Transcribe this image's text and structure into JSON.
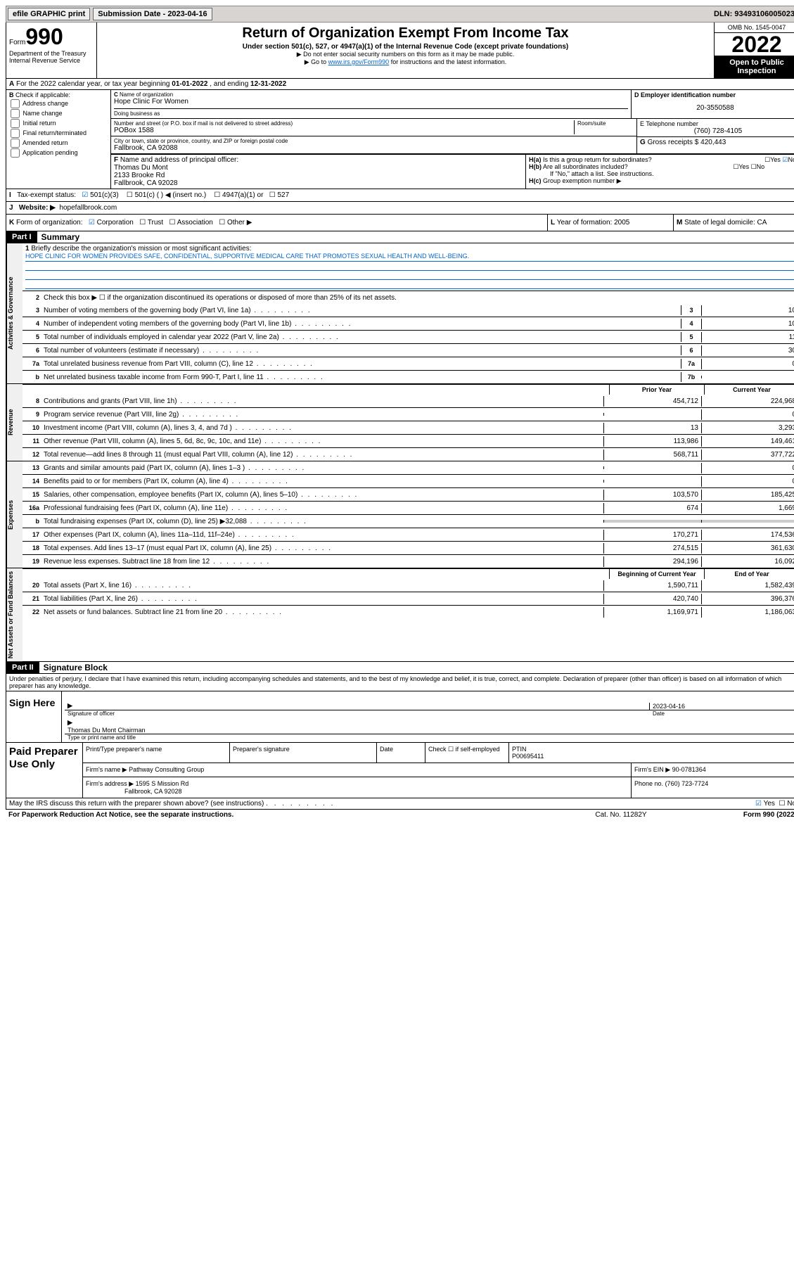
{
  "top_bar": {
    "efile": "efile GRAPHIC print",
    "submission": "Submission Date - 2023-04-16",
    "dln": "DLN: 93493106005023"
  },
  "header": {
    "form_prefix": "Form",
    "form_number": "990",
    "title": "Return of Organization Exempt From Income Tax",
    "subtitle": "Under section 501(c), 527, or 4947(a)(1) of the Internal Revenue Code (except private foundations)",
    "note1": "▶ Do not enter social security numbers on this form as it may be made public.",
    "note2_prefix": "▶ Go to ",
    "note2_link": "www.irs.gov/Form990",
    "note2_suffix": " for instructions and the latest information.",
    "dept": "Department of the Treasury\nInternal Revenue Service",
    "omb": "OMB No. 1545-0047",
    "year": "2022",
    "open": "Open to Public Inspection"
  },
  "row_A": {
    "label": "A",
    "text_prefix": "For the 2022 calendar year, or tax year beginning ",
    "begin": "01-01-2022",
    "middle": " , and ending ",
    "end": "12-31-2022"
  },
  "col_B": {
    "label": "B",
    "header": "Check if applicable:",
    "items": [
      "Address change",
      "Name change",
      "Initial return",
      "Final return/terminated",
      "Amended return",
      "Application pending"
    ]
  },
  "box_C": {
    "label": "C",
    "name_label": "Name of organization",
    "name": "Hope Clinic For Women",
    "dba_label": "Doing business as",
    "street_label": "Number and street (or P.O. box if mail is not delivered to street address)",
    "room_label": "Room/suite",
    "street": "POBox 1588",
    "city_label": "City or town, state or province, country, and ZIP or foreign postal code",
    "city": "Fallbrook, CA  92088"
  },
  "box_D": {
    "label": "D Employer identification number",
    "value": "20-3550588"
  },
  "box_E": {
    "label": "E Telephone number",
    "value": "(760) 728-4105"
  },
  "box_G": {
    "label": "G",
    "text": "Gross receipts $",
    "value": "420,443"
  },
  "box_F": {
    "label": "F",
    "text": "Name and address of principal officer:",
    "name": "Thomas Du Mont",
    "addr1": "2133 Brooke Rd",
    "addr2": "Fallbrook, CA  92028"
  },
  "box_H": {
    "a_label": "H(a)",
    "a_text": "Is this a group return for subordinates?",
    "a_no": true,
    "b_label": "H(b)",
    "b_text": "Are all subordinates included?",
    "b_note": "If \"No,\" attach a list. See instructions.",
    "c_label": "H(c)",
    "c_text": "Group exemption number ▶"
  },
  "row_I": {
    "label": "I",
    "text": "Tax-exempt status:",
    "opt1": "501(c)(3)",
    "opt2": "501(c) (  ) ◀ (insert no.)",
    "opt3": "4947(a)(1) or",
    "opt4": "527"
  },
  "row_J": {
    "label": "J",
    "text": "Website: ▶",
    "value": "hopefallbrook.com"
  },
  "row_K": {
    "label": "K",
    "text": "Form of organization:",
    "opts": [
      "Corporation",
      "Trust",
      "Association",
      "Other ▶"
    ],
    "year_label": "L",
    "year_text": "Year of formation:",
    "year_val": "2005",
    "state_label": "M",
    "state_text": "State of legal domicile:",
    "state_val": "CA"
  },
  "partI": {
    "label": "Part I",
    "title": "Summary"
  },
  "summary": {
    "line1_label": "1",
    "line1_text": "Briefly describe the organization's mission or most significant activities:",
    "line1_mission": "HOPE CLINIC FOR WOMEN PROVIDES SAFE, CONFIDENTIAL, SUPPORTIVE MEDICAL CARE THAT PROMOTES SEXUAL HEALTH AND WELL-BEING.",
    "line2_label": "2",
    "line2_text": "Check this box ▶ ☐  if the organization discontinued its operations or disposed of more than 25% of its net assets.",
    "rows_gov": [
      {
        "num": "3",
        "desc": "Number of voting members of the governing body (Part VI, line 1a)",
        "box": "3",
        "val": "10"
      },
      {
        "num": "4",
        "desc": "Number of independent voting members of the governing body (Part VI, line 1b)",
        "box": "4",
        "val": "10"
      },
      {
        "num": "5",
        "desc": "Total number of individuals employed in calendar year 2022 (Part V, line 2a)",
        "box": "5",
        "val": "11"
      },
      {
        "num": "6",
        "desc": "Total number of volunteers (estimate if necessary)",
        "box": "6",
        "val": "30"
      },
      {
        "num": "7a",
        "desc": "Total unrelated business revenue from Part VIII, column (C), line 12",
        "box": "7a",
        "val": "0"
      },
      {
        "num": "b",
        "desc": "Net unrelated business taxable income from Form 990-T, Part I, line 11",
        "box": "7b",
        "val": ""
      }
    ],
    "col_prior": "Prior Year",
    "col_current": "Current Year",
    "rows_rev": [
      {
        "num": "8",
        "desc": "Contributions and grants (Part VIII, line 1h)",
        "prior": "454,712",
        "curr": "224,968"
      },
      {
        "num": "9",
        "desc": "Program service revenue (Part VIII, line 2g)",
        "prior": "",
        "curr": "0"
      },
      {
        "num": "10",
        "desc": "Investment income (Part VIII, column (A), lines 3, 4, and 7d )",
        "prior": "13",
        "curr": "3,293"
      },
      {
        "num": "11",
        "desc": "Other revenue (Part VIII, column (A), lines 5, 6d, 8c, 9c, 10c, and 11e)",
        "prior": "113,986",
        "curr": "149,461"
      },
      {
        "num": "12",
        "desc": "Total revenue—add lines 8 through 11 (must equal Part VIII, column (A), line 12)",
        "prior": "568,711",
        "curr": "377,722"
      }
    ],
    "rows_exp": [
      {
        "num": "13",
        "desc": "Grants and similar amounts paid (Part IX, column (A), lines 1–3 )",
        "prior": "",
        "curr": "0"
      },
      {
        "num": "14",
        "desc": "Benefits paid to or for members (Part IX, column (A), line 4)",
        "prior": "",
        "curr": "0"
      },
      {
        "num": "15",
        "desc": "Salaries, other compensation, employee benefits (Part IX, column (A), lines 5–10)",
        "prior": "103,570",
        "curr": "185,425"
      },
      {
        "num": "16a",
        "desc": "Professional fundraising fees (Part IX, column (A), line 11e)",
        "prior": "674",
        "curr": "1,669"
      },
      {
        "num": "b",
        "desc": "Total fundraising expenses (Part IX, column (D), line 25) ▶32,088",
        "prior": "SHADE",
        "curr": "SHADE"
      },
      {
        "num": "17",
        "desc": "Other expenses (Part IX, column (A), lines 11a–11d, 11f–24e)",
        "prior": "170,271",
        "curr": "174,536"
      },
      {
        "num": "18",
        "desc": "Total expenses. Add lines 13–17 (must equal Part IX, column (A), line 25)",
        "prior": "274,515",
        "curr": "361,630"
      },
      {
        "num": "19",
        "desc": "Revenue less expenses. Subtract line 18 from line 12",
        "prior": "294,196",
        "curr": "16,092"
      }
    ],
    "col_beg": "Beginning of Current Year",
    "col_end": "End of Year",
    "rows_net": [
      {
        "num": "20",
        "desc": "Total assets (Part X, line 16)",
        "prior": "1,590,711",
        "curr": "1,582,439"
      },
      {
        "num": "21",
        "desc": "Total liabilities (Part X, line 26)",
        "prior": "420,740",
        "curr": "396,376"
      },
      {
        "num": "22",
        "desc": "Net assets or fund balances. Subtract line 21 from line 20",
        "prior": "1,169,971",
        "curr": "1,186,063"
      }
    ]
  },
  "partII": {
    "label": "Part II",
    "title": "Signature Block"
  },
  "sig_decl": "Under penalties of perjury, I declare that I have examined this return, including accompanying schedules and statements, and to the best of my knowledge and belief, it is true, correct, and complete. Declaration of preparer (other than officer) is based on all information of which preparer has any knowledge.",
  "sign": {
    "label": "Sign Here",
    "sig_caption": "Signature of officer",
    "date": "2023-04-16",
    "date_caption": "Date",
    "name": "Thomas Du Mont Chairman",
    "name_caption": "Type or print name and title"
  },
  "preparer": {
    "label": "Paid Preparer Use Only",
    "col1": "Print/Type preparer's name",
    "col2": "Preparer's signature",
    "col3": "Date",
    "col4_label": "Check ☐ if self-employed",
    "col5_label": "PTIN",
    "ptin": "P00695411",
    "firm_name_label": "Firm's name    ▶",
    "firm_name": "Pathway Consulting Group",
    "firm_ein_label": "Firm's EIN ▶",
    "firm_ein": "90-0781364",
    "firm_addr_label": "Firm's address ▶",
    "firm_addr1": "1595 S Mission Rd",
    "firm_addr2": "Fallbrook, CA  92028",
    "phone_label": "Phone no.",
    "phone": "(760) 723-7724"
  },
  "footer": {
    "discuss": "May the IRS discuss this return with the preparer shown above? (see instructions)",
    "yes": "Yes",
    "no": "No",
    "paperwork": "For Paperwork Reduction Act Notice, see the separate instructions.",
    "cat": "Cat. No. 11282Y",
    "form": "Form 990 (2022)"
  }
}
